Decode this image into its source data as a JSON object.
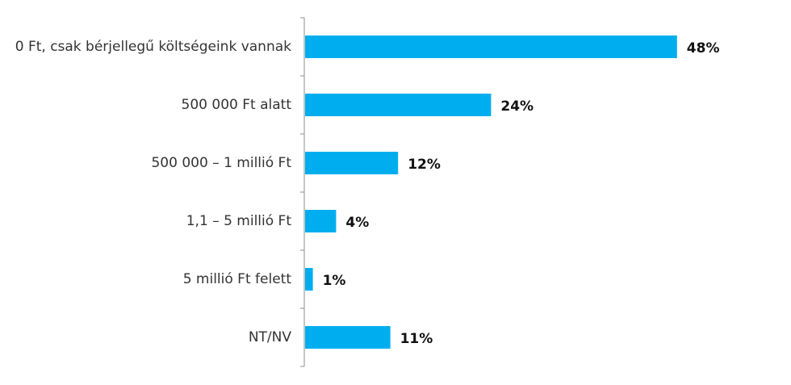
{
  "chart_data": {
    "type": "bar",
    "orientation": "horizontal",
    "categories": [
      "0 Ft, csak bérjellegű költségeink vannak",
      "500 000 Ft alatt",
      "500 000 – 1 millió Ft",
      "1,1   – 5 millió Ft",
      "5 millió Ft felett",
      "NT/NV"
    ],
    "values": [
      48,
      24,
      12,
      4,
      1,
      11
    ],
    "value_labels": [
      "48%",
      "24%",
      "12%",
      "4%",
      "1%",
      "11%"
    ],
    "unit": "%",
    "title": "",
    "xlabel": "",
    "ylabel": "",
    "xlim": [
      0,
      50
    ],
    "grid": false,
    "legend": "none",
    "bar_color": "#00AEEF",
    "axis_color": "#8C8C8C"
  }
}
